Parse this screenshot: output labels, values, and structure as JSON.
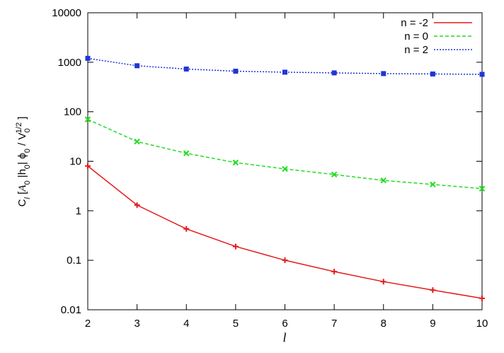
{
  "chart_data": {
    "type": "line",
    "x_label": "l",
    "y_label_parts": [
      "C",
      "l",
      " [",
      "A",
      "0",
      " |h",
      "0",
      "| ϕ",
      "0",
      " / V",
      "0",
      "1/2",
      " ]"
    ],
    "x": [
      2,
      3,
      4,
      5,
      6,
      7,
      8,
      9,
      10
    ],
    "series": [
      {
        "name": "n = -2",
        "color": "#e41a1c",
        "linestyle": "solid",
        "marker": "plus",
        "values": [
          8,
          1.3,
          0.43,
          0.19,
          0.1,
          0.059,
          0.037,
          0.025,
          0.017
        ]
      },
      {
        "name": "n = 0",
        "color": "#22dd22",
        "linestyle": "dashed",
        "marker": "cross",
        "values": [
          70,
          25,
          14.5,
          9.4,
          7,
          5.4,
          4.1,
          3.4,
          2.8
        ]
      },
      {
        "name": "n = 2",
        "color": "#1f35d6",
        "linestyle": "dotted",
        "marker": "square",
        "values": [
          1200,
          850,
          730,
          660,
          630,
          610,
          590,
          580,
          570
        ]
      }
    ],
    "xlim": [
      2,
      10
    ],
    "xticks": [
      2,
      3,
      4,
      5,
      6,
      7,
      8,
      9,
      10
    ],
    "ylim": [
      0.01,
      10000
    ],
    "yticks": [
      0.01,
      0.1,
      1,
      10,
      100,
      1000,
      10000
    ],
    "log_y": true,
    "legend": "top-right"
  }
}
